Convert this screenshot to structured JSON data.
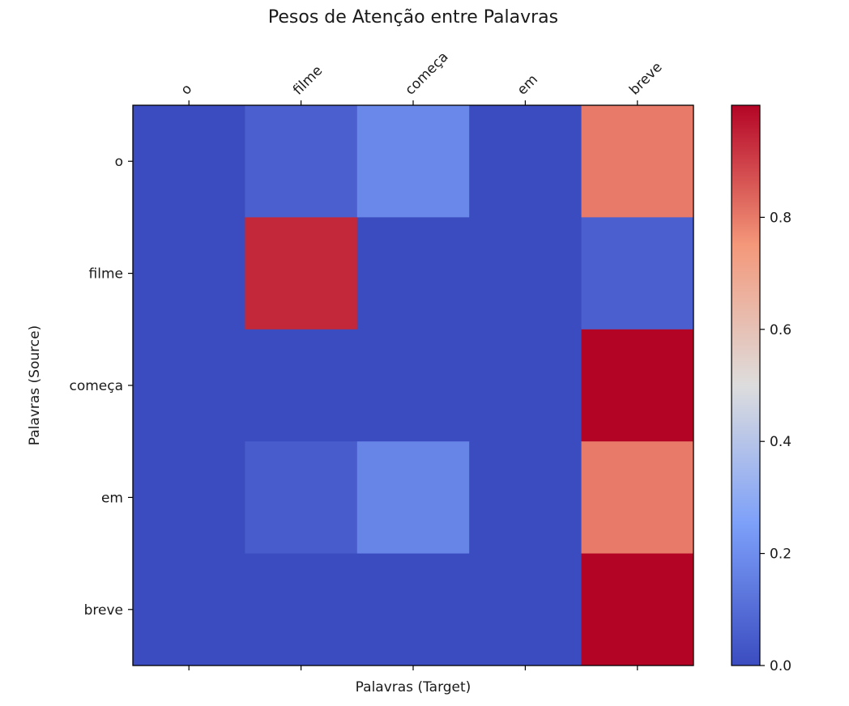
{
  "chart_data": {
    "type": "heatmap",
    "title": "Pesos de Atenção entre Palavras",
    "xlabel": "Palavras (Target)",
    "ylabel": "Palavras (Source)",
    "x_categories": [
      "o",
      "filme",
      "começa",
      "em",
      "breve"
    ],
    "y_categories": [
      "o",
      "filme",
      "começa",
      "em",
      "breve"
    ],
    "values": [
      [
        0.0,
        0.06,
        0.18,
        0.0,
        0.8
      ],
      [
        0.0,
        0.94,
        0.0,
        0.0,
        0.06
      ],
      [
        0.0,
        0.0,
        0.0,
        0.0,
        1.0
      ],
      [
        0.0,
        0.05,
        0.17,
        0.0,
        0.8
      ],
      [
        0.0,
        0.0,
        0.0,
        0.0,
        1.0
      ]
    ],
    "colormap": "coolwarm",
    "colorbar": {
      "range": [
        0.0,
        1.0
      ],
      "ticks": [
        0.0,
        0.2,
        0.4,
        0.6,
        0.8
      ],
      "tick_labels": [
        "0.0",
        "0.2",
        "0.4",
        "0.6",
        "0.8"
      ]
    },
    "x_tick_position": "top",
    "x_tick_rotation": 45,
    "grid": false
  }
}
